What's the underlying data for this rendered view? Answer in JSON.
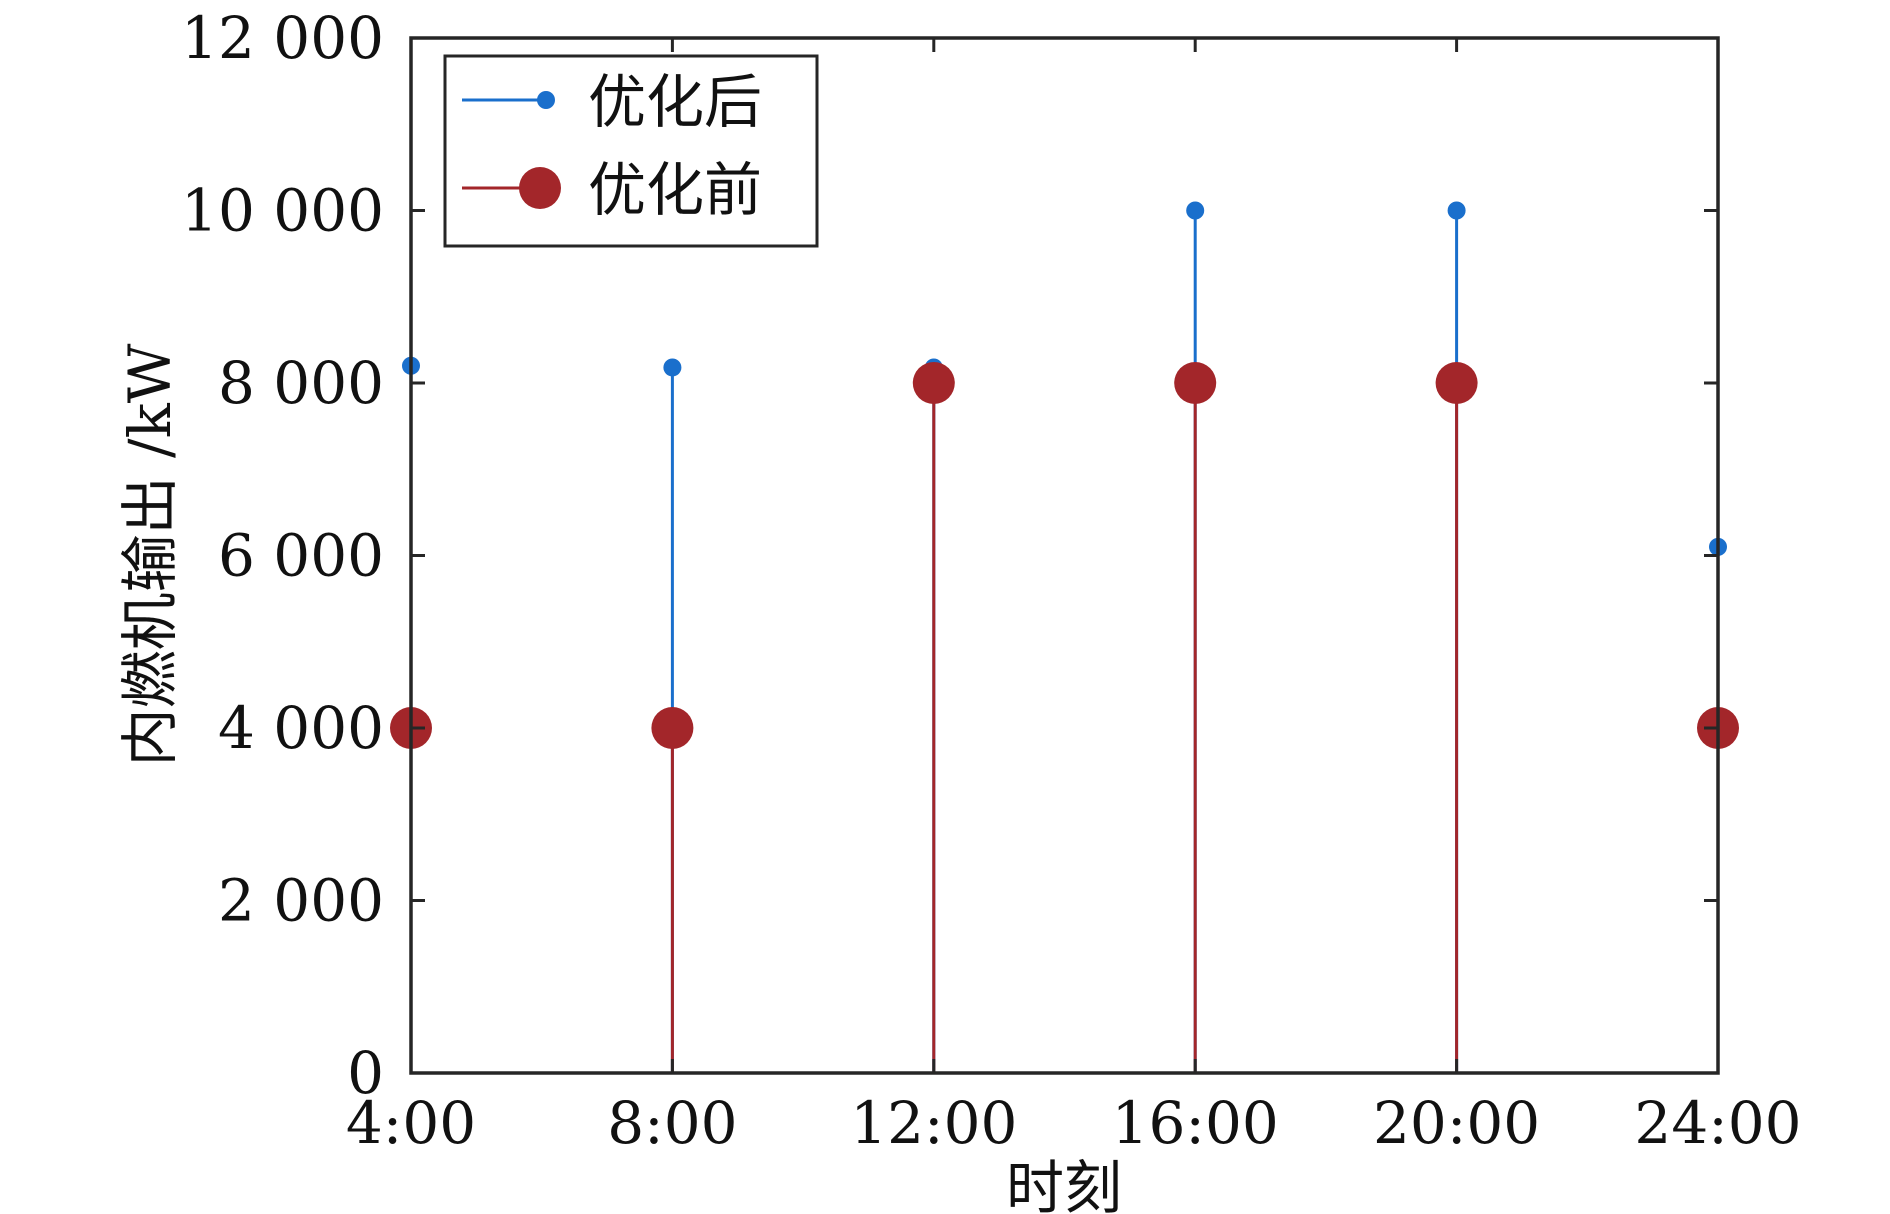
{
  "chart_data": {
    "type": "stem",
    "x": [
      "4:00",
      "8:00",
      "12:00",
      "16:00",
      "20:00",
      "24:00"
    ],
    "xlabel": "时刻",
    "ylabel": "内燃机输出 /kW",
    "ylim": [
      0,
      12000
    ],
    "yticks": [
      0,
      2000,
      4000,
      6000,
      8000,
      10000,
      12000
    ],
    "ytick_labels": [
      "0",
      "2 000",
      "4 000",
      "6 000",
      "8 000",
      "10 000",
      "12 000"
    ],
    "legend_position": "top-left",
    "grid": false,
    "series": [
      {
        "name": "优化后",
        "values": [
          8200,
          8180,
          8180,
          10000,
          10000,
          6100
        ],
        "color": "#1a6fcc",
        "marker": "small-dot"
      },
      {
        "name": "优化前",
        "values": [
          4000,
          4000,
          8000,
          8000,
          8000,
          4000
        ],
        "color": "#a3262a",
        "marker": "large-dot"
      }
    ]
  }
}
